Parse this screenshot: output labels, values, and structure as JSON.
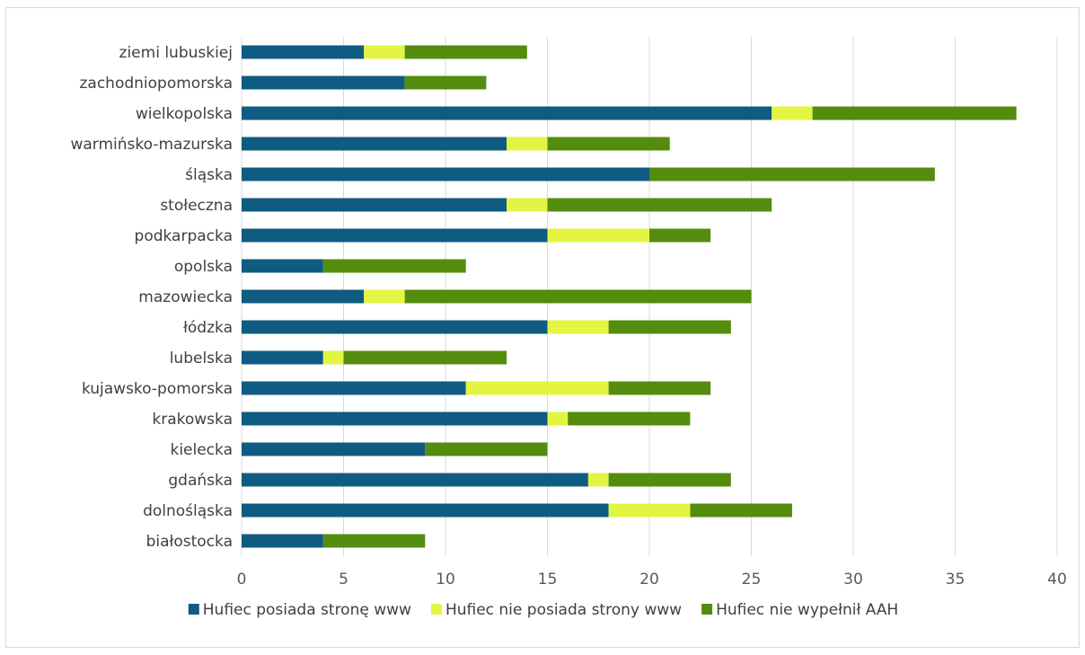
{
  "chart_data": {
    "type": "bar",
    "orientation": "horizontal",
    "stacked": true,
    "categories": [
      "białostocka",
      "dolnośląska",
      "gdańska",
      "kielecka",
      "krakowska",
      "kujawsko-pomorska",
      "lubelska",
      "łódzka",
      "mazowiecka",
      "opolska",
      "podkarpacka",
      "stołeczna",
      "śląska",
      "warmińsko-mazurska",
      "wielkopolska",
      "zachodniopomorska",
      "ziemi lubuskiej"
    ],
    "series": [
      {
        "name": "Hufiec posiada stronę www",
        "color": "#0f5b82",
        "values": [
          4,
          18,
          17,
          9,
          15,
          11,
          4,
          15,
          6,
          4,
          15,
          13,
          20,
          13,
          26,
          8,
          6
        ]
      },
      {
        "name": "Hufiec nie posiada strony www",
        "color": "#e3f542",
        "values": [
          0,
          4,
          1,
          0,
          1,
          7,
          1,
          3,
          2,
          0,
          5,
          2,
          0,
          2,
          2,
          0,
          2
        ]
      },
      {
        "name": "Hufiec nie wypełnił AAH",
        "color": "#548c0e",
        "values": [
          5,
          5,
          6,
          6,
          6,
          5,
          8,
          6,
          17,
          7,
          3,
          11,
          14,
          6,
          10,
          4,
          6
        ]
      }
    ],
    "xlim": [
      0,
      40
    ],
    "xticks": [
      0,
      5,
      10,
      15,
      20,
      25,
      30,
      35,
      40
    ],
    "grid": true,
    "legend_position": "bottom",
    "title": "",
    "xlabel": "",
    "ylabel": ""
  }
}
